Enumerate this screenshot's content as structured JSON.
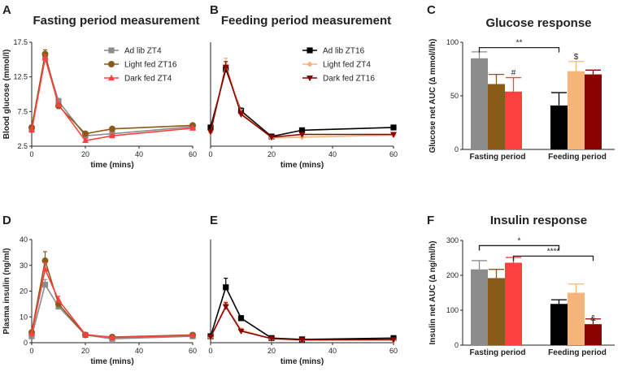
{
  "colors": {
    "adlib_zt4": "#8c8c8c",
    "light_fed_zt16": "#8a5a1a",
    "dark_fed_zt4": "#ff4040",
    "adlib_zt16": "#000000",
    "light_fed_zt4": "#f5b47a",
    "dark_fed_zt16": "#8b0000"
  },
  "chart_data": [
    {
      "panel": "A",
      "type": "line",
      "title": "Fasting period measurement",
      "xlabel": "time (mins)",
      "ylabel": "Blood glucose (mmol/l)",
      "xlim": [
        0,
        60
      ],
      "ylim": [
        2.5,
        17.5
      ],
      "xticks": [
        "0",
        "20",
        "40",
        "60"
      ],
      "yticks": [
        "2.5",
        "7.5",
        "12.5",
        "17.5"
      ],
      "x": [
        0,
        5,
        10,
        20,
        30,
        60
      ],
      "legend": "top-right",
      "series": [
        {
          "name": "Ad lib ZT4",
          "color": "#8c8c8c",
          "marker": "square",
          "values": [
            5.0,
            15.4,
            9.0,
            4.0,
            4.3,
            5.3
          ],
          "err": [
            0.3,
            0.5,
            0.4,
            0.3,
            0.2,
            0.2
          ]
        },
        {
          "name": "Light fed ZT16",
          "color": "#8a5a1a",
          "marker": "circle",
          "values": [
            5.2,
            15.8,
            8.3,
            4.3,
            5.0,
            5.5
          ],
          "err": [
            0.3,
            0.6,
            0.3,
            0.3,
            0.2,
            0.2
          ]
        },
        {
          "name": "Dark fed ZT4",
          "color": "#ff4040",
          "marker": "triangle",
          "values": [
            4.8,
            15.2,
            8.5,
            3.3,
            4.0,
            5.1
          ],
          "err": [
            0.3,
            0.5,
            0.3,
            0.3,
            0.2,
            0.2
          ]
        }
      ]
    },
    {
      "panel": "B",
      "type": "line",
      "title": "Feeding period measurement",
      "xlabel": "time (mins)",
      "ylabel": "",
      "xlim": [
        0,
        60
      ],
      "ylim": [
        2.5,
        17.5
      ],
      "xticks": [
        "0",
        "20",
        "40",
        "60"
      ],
      "yticks": [],
      "x": [
        0,
        5,
        10,
        20,
        30,
        60
      ],
      "legend": "top-right",
      "series": [
        {
          "name": "Ad lib ZT16",
          "color": "#000000",
          "marker": "square",
          "values": [
            5.2,
            13.6,
            7.6,
            3.9,
            4.8,
            5.2
          ],
          "err": [
            0.3,
            0.6,
            0.4,
            0.2,
            0.2,
            0.2
          ]
        },
        {
          "name": "Light fed ZT4",
          "color": "#f5b47a",
          "marker": "diamond",
          "values": [
            4.5,
            14.2,
            7.3,
            3.7,
            3.8,
            4.1
          ],
          "err": [
            0.3,
            1.0,
            0.5,
            0.2,
            0.2,
            0.2
          ]
        },
        {
          "name": "Dark fed ZT16",
          "color": "#8b0000",
          "marker": "triangle-down",
          "values": [
            4.6,
            13.9,
            7.1,
            3.8,
            4.2,
            4.2
          ],
          "err": [
            0.3,
            0.8,
            0.4,
            0.2,
            0.2,
            0.2
          ]
        }
      ]
    },
    {
      "panel": "C",
      "type": "bar",
      "title": "Glucose response",
      "xlabel": "",
      "ylabel": "Glucose net AUC (∆ mmol/l/h)",
      "ylim": [
        0,
        100
      ],
      "yticks": [
        "0",
        "50",
        "100"
      ],
      "categories": [
        "Fasting period",
        "Feeding period"
      ],
      "bars": [
        {
          "group": 0,
          "color": "#8c8c8c",
          "value": 85,
          "err": 6,
          "label": ""
        },
        {
          "group": 0,
          "color": "#8a5a1a",
          "value": 61,
          "err": 9,
          "label": ""
        },
        {
          "group": 0,
          "color": "#ff4040",
          "value": 54,
          "err": 13,
          "label": "#"
        },
        {
          "group": 1,
          "color": "#000000",
          "value": 41,
          "err": 12,
          "label": ""
        },
        {
          "group": 1,
          "color": "#f5b47a",
          "value": 73,
          "err": 9,
          "label": "$"
        },
        {
          "group": 1,
          "color": "#8b0000",
          "value": 70,
          "err": 4,
          "label": ""
        }
      ],
      "significance": [
        {
          "from_bar": 0,
          "to_bar": 3,
          "level": 95,
          "label": "**"
        }
      ]
    },
    {
      "panel": "D",
      "type": "line",
      "title": "",
      "xlabel": "time (mins)",
      "ylabel": "Plasma insulin (ng/ml)",
      "xlim": [
        0,
        60
      ],
      "ylim": [
        0,
        40
      ],
      "xticks": [
        "0",
        "20",
        "40",
        "60"
      ],
      "yticks": [
        "0",
        "10",
        "20",
        "30",
        "40"
      ],
      "x": [
        0,
        5,
        10,
        20,
        30,
        60
      ],
      "series": [
        {
          "name": "Ad lib ZT4",
          "color": "#8c8c8c",
          "marker": "square",
          "values": [
            2.5,
            22.5,
            14.0,
            3.0,
            1.5,
            2.5
          ],
          "err": [
            0.5,
            2.0,
            1.2,
            0.4,
            0.3,
            0.3
          ]
        },
        {
          "name": "Light fed ZT16",
          "color": "#8a5a1a",
          "marker": "circle",
          "values": [
            4.0,
            31.8,
            15.0,
            3.0,
            2.2,
            3.0
          ],
          "err": [
            0.5,
            3.5,
            1.5,
            0.4,
            0.3,
            0.3
          ]
        },
        {
          "name": "Dark fed ZT4",
          "color": "#ff4040",
          "marker": "triangle",
          "values": [
            3.5,
            28.5,
            16.5,
            3.2,
            2.0,
            2.8
          ],
          "err": [
            0.5,
            2.5,
            1.5,
            0.4,
            0.3,
            0.3
          ]
        }
      ]
    },
    {
      "panel": "E",
      "type": "line",
      "title": "",
      "xlabel": "time (mins)",
      "ylabel": "",
      "xlim": [
        0,
        60
      ],
      "ylim": [
        0,
        40
      ],
      "xticks": [
        "0",
        "20",
        "40",
        "60"
      ],
      "yticks": [],
      "x": [
        0,
        5,
        10,
        20,
        30,
        60
      ],
      "series": [
        {
          "name": "Ad lib ZT16",
          "color": "#000000",
          "marker": "square",
          "values": [
            2.5,
            21.5,
            9.5,
            1.8,
            1.3,
            1.8
          ],
          "err": [
            0.4,
            3.5,
            1.0,
            0.3,
            0.2,
            0.2
          ]
        },
        {
          "name": "Light fed ZT4",
          "color": "#f5b47a",
          "marker": "diamond",
          "values": [
            2.0,
            14.5,
            5.0,
            1.5,
            1.0,
            1.0
          ],
          "err": [
            0.4,
            1.5,
            0.6,
            0.3,
            0.2,
            0.2
          ]
        },
        {
          "name": "Dark fed ZT16",
          "color": "#8b0000",
          "marker": "triangle-down",
          "values": [
            2.2,
            14.0,
            4.5,
            1.6,
            1.1,
            1.2
          ],
          "err": [
            0.4,
            1.5,
            0.6,
            0.3,
            0.2,
            0.2
          ]
        }
      ]
    },
    {
      "panel": "F",
      "type": "bar",
      "title": "Insulin response",
      "xlabel": "",
      "ylabel": "Insulin net AUC (∆ ng/ml/h)",
      "ylim": [
        0,
        300
      ],
      "yticks": [
        "0",
        "100",
        "200",
        "300"
      ],
      "categories": [
        "Fasting period",
        "Feeding period"
      ],
      "bars": [
        {
          "group": 0,
          "color": "#8c8c8c",
          "value": 217,
          "err": 25,
          "label": ""
        },
        {
          "group": 0,
          "color": "#8a5a1a",
          "value": 192,
          "err": 25,
          "label": ""
        },
        {
          "group": 0,
          "color": "#ff4040",
          "value": 236,
          "err": 15,
          "label": ""
        },
        {
          "group": 1,
          "color": "#000000",
          "value": 118,
          "err": 12,
          "label": ""
        },
        {
          "group": 1,
          "color": "#f5b47a",
          "value": 150,
          "err": 25,
          "label": ""
        },
        {
          "group": 1,
          "color": "#8b0000",
          "value": 60,
          "err": 15,
          "label": "&"
        }
      ],
      "significance": [
        {
          "from_bar": 0,
          "to_bar": 3,
          "level": 285,
          "label": "*"
        },
        {
          "from_bar": 2,
          "to_bar": 5,
          "level": 255,
          "label": "****"
        }
      ]
    }
  ]
}
